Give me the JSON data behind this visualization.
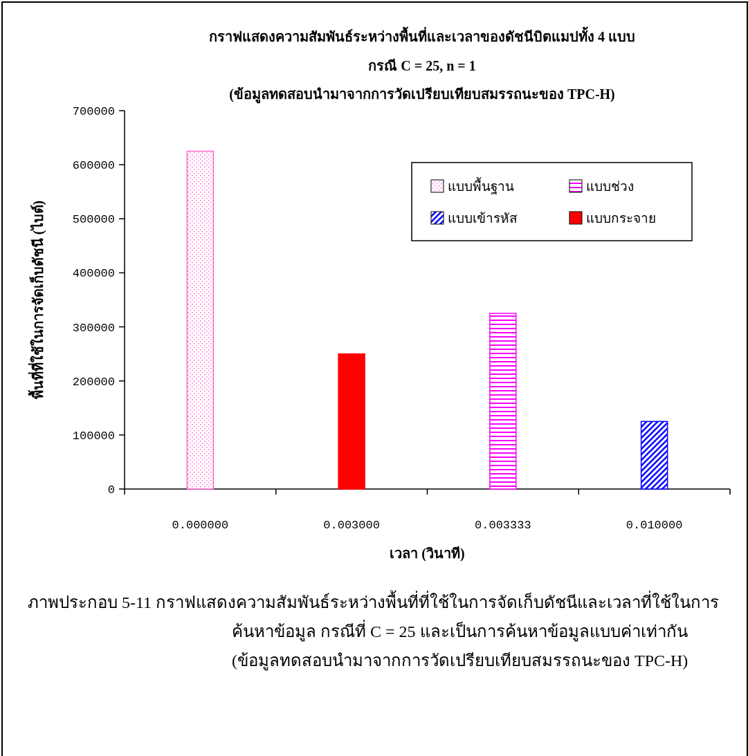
{
  "chart_data": {
    "type": "bar",
    "title": "กราฟแสดงความสัมพันธ์ระหว่างพื้นที่และเวลาของดัชนีบิตแมปทั้ง 4 แบบ",
    "subtitle": "กรณี C = 25, n = 1\n(ข้อมูลทดสอบนำมาจากการวัดเปรียบเทียบสมรรถนะของ TPC-H)",
    "xlabel": "เวลา (วินาที)",
    "ylabel": "พื้นที่ที่ใช้ในการจัดเก็บดัชนี (ไบต์)",
    "categories": [
      "0.000000",
      "0.003000",
      "0.003333",
      "0.010000"
    ],
    "series": [
      {
        "name": "แบบพื้นฐาน",
        "color": "#ff66cc",
        "values": [
          625000,
          null,
          null,
          null
        ]
      },
      {
        "name": "แบบช่วง",
        "color": "#ff00ff",
        "values": [
          null,
          null,
          325000,
          null
        ]
      },
      {
        "name": "แบบเข้ารหัส",
        "color": "#0000ff",
        "values": [
          null,
          null,
          null,
          125000
        ]
      },
      {
        "name": "แบบกระจาย",
        "color": "#ff0000",
        "values": [
          null,
          250000,
          null,
          null
        ]
      }
    ],
    "ylim": [
      0,
      700000
    ],
    "yticks": [
      0,
      100000,
      200000,
      300000,
      400000,
      500000,
      600000,
      700000
    ],
    "legend": "top right",
    "annotations": [
      "ภาพประกอบ 5-11 กราฟแสดงความสัมพันธ์ระหว่างพื้นที่ที่ใช้ในการจัดเก็บดัชนีและเวลาที่ใช้ในการค้นหาข้อมูล กรณีที่ C = 25 และเป็นการค้นหาข้อมูลแบบค่าเท่ากัน (ข้อมูลทดสอบนำมาจากการวัดเปรียบเทียบสมรรถนะของ TPC-H)"
    ]
  }
}
